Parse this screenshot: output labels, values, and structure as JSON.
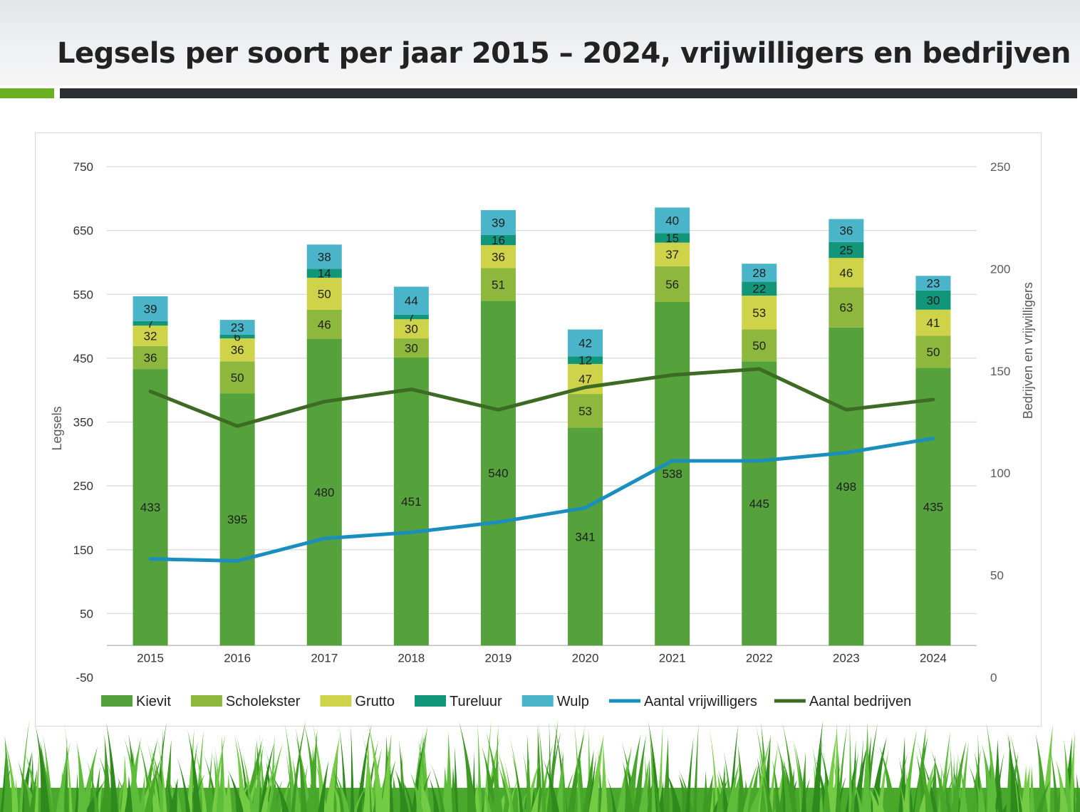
{
  "title": "Legsels per soort per jaar 2015 – 2024, vrijwilligers en bedrijven",
  "colors": {
    "kievit": "#55a13b",
    "scholekster": "#8db83d",
    "grutto": "#cfd34a",
    "tureluur": "#12967a",
    "wulp": "#4ab5c8",
    "vrijwilligers": "#1a8fbe",
    "bedrijven": "#3d6b24",
    "accent_green": "#6ab023",
    "accent_dark": "#2b2f33"
  },
  "chart_data": {
    "type": "bar",
    "stacked": true,
    "categories": [
      "2015",
      "2016",
      "2017",
      "2018",
      "2019",
      "2020",
      "2021",
      "2022",
      "2023",
      "2024"
    ],
    "ylabel": "Legsels",
    "y2label": "Bedrijven en vrijwilligers",
    "ylim": [
      -50,
      750
    ],
    "yticks": [
      "750",
      "650",
      "550",
      "450",
      "350",
      "250",
      "150",
      "50",
      "-50"
    ],
    "y2lim": [
      0,
      250
    ],
    "y2ticks": [
      "250",
      "200",
      "150",
      "100",
      "50",
      "0"
    ],
    "grid": true,
    "legend_position": "bottom",
    "series": [
      {
        "name": "Kievit",
        "key": "kievit",
        "values": [
          433,
          395,
          480,
          451,
          540,
          341,
          538,
          445,
          498,
          435
        ]
      },
      {
        "name": "Scholekster",
        "key": "scholekster",
        "values": [
          36,
          50,
          46,
          30,
          51,
          53,
          56,
          50,
          63,
          50
        ]
      },
      {
        "name": "Grutto",
        "key": "grutto",
        "values": [
          32,
          36,
          50,
          30,
          36,
          47,
          37,
          53,
          46,
          41
        ]
      },
      {
        "name": "Tureluur",
        "key": "tureluur",
        "values": [
          7,
          6,
          14,
          7,
          16,
          12,
          15,
          22,
          25,
          30
        ]
      },
      {
        "name": "Wulp",
        "key": "wulp",
        "values": [
          39,
          23,
          38,
          44,
          39,
          42,
          40,
          28,
          36,
          23
        ]
      }
    ],
    "lines": [
      {
        "name": "Aantal vrijwilligers",
        "key": "vrijwilligers",
        "axis": "right",
        "values": [
          58,
          57,
          68,
          71,
          76,
          83,
          106,
          106,
          110,
          117
        ]
      },
      {
        "name": "Aantal bedrijven",
        "key": "bedrijven",
        "axis": "right",
        "values": [
          140,
          123,
          135,
          141,
          131,
          142,
          148,
          151,
          131,
          136
        ]
      }
    ]
  }
}
